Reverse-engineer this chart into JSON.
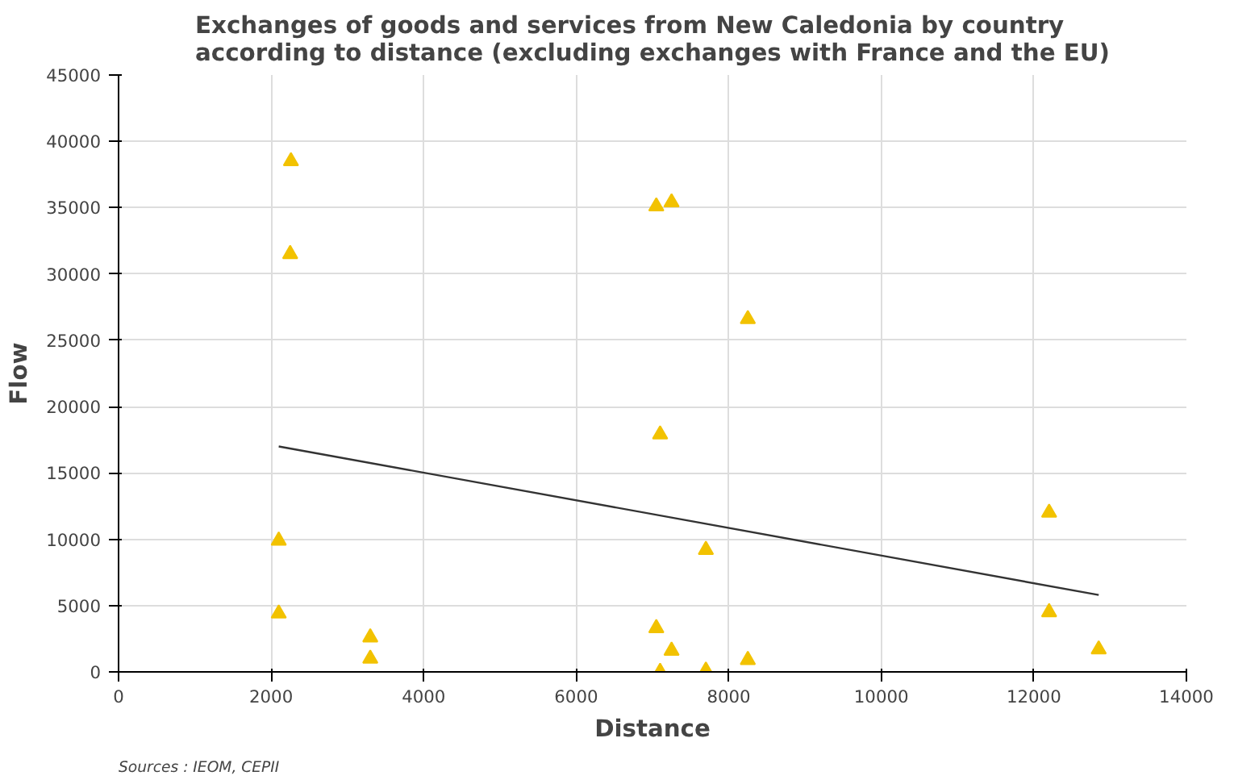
{
  "chart_data": {
    "type": "scatter",
    "title": "Exchanges of goods and services from New Caledonia by country\naccording to distance (excluding exchanges with France and the EU)",
    "xlabel": "Distance",
    "ylabel": "Flow",
    "annotations": [
      "Sources : IEOM, CEPII"
    ],
    "xlim": [
      0,
      14000
    ],
    "xticks": [
      0,
      2000,
      4000,
      6000,
      8000,
      10000,
      12000,
      14000
    ],
    "ylim": [
      0,
      45000
    ],
    "yticks": [
      0,
      5000,
      10000,
      15000,
      20000,
      25000,
      30000,
      35000,
      40000,
      45000
    ],
    "grid": true,
    "series": [
      {
        "marker": "triangle",
        "color": "#f2c200",
        "x": [
          2260,
          2250,
          2100,
          2100,
          3300,
          3300,
          7050,
          7250,
          7100,
          7050,
          7250,
          7100,
          7700,
          7700,
          8250,
          8250,
          12200,
          12200,
          12850
        ],
        "values": [
          38500,
          31500,
          9900,
          4400,
          2600,
          1000,
          35100,
          35400,
          17900,
          3300,
          1600,
          0,
          9200,
          100,
          26600,
          900,
          12000,
          4500,
          1700
        ]
      },
      {
        "type": "line",
        "marker": "none",
        "color": "#333333",
        "x": [
          2100,
          12850
        ],
        "values": [
          17000,
          5800
        ]
      }
    ]
  }
}
